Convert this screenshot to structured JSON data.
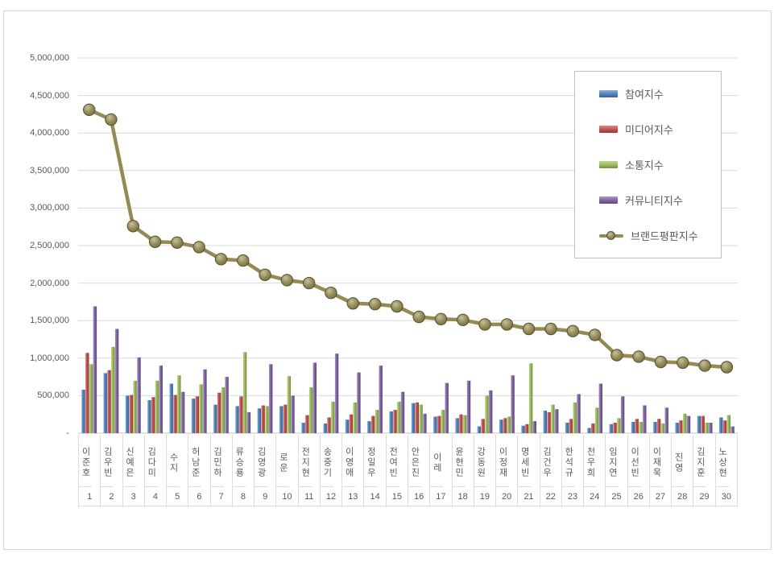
{
  "chart_data": {
    "type": "bar",
    "subtype": "grouped-bars-with-line-overlay",
    "title": "",
    "xlabel": "",
    "ylabel": "",
    "ylim": [
      0,
      5000000
    ],
    "y_tick_step": 500000,
    "y_tick_labels": [
      "-",
      "500,000",
      "1,000,000",
      "1,500,000",
      "2,000,000",
      "2,500,000",
      "3,000,000",
      "3,500,000",
      "4,000,000",
      "4,500,000",
      "5,000,000"
    ],
    "grid": true,
    "grid_color": "#D9D9D9",
    "axis_label_color": "#595959",
    "legend_position": "inside-top-right",
    "categories": [
      "이준호",
      "김우빈",
      "신예은",
      "김다미",
      "수지",
      "허남준",
      "김민하",
      "류승룡",
      "김영광",
      "로운",
      "전지현",
      "송중기",
      "이영애",
      "정일우",
      "전여빈",
      "안은진",
      "이레",
      "윤현민",
      "강동원",
      "이정재",
      "명세빈",
      "김건우",
      "한석규",
      "천우희",
      "임지연",
      "이선빈",
      "이재욱",
      "진영",
      "김지훈",
      "노상현"
    ],
    "ranks": [
      "1",
      "2",
      "3",
      "4",
      "5",
      "6",
      "7",
      "8",
      "9",
      "10",
      "11",
      "12",
      "13",
      "14",
      "15",
      "16",
      "17",
      "18",
      "19",
      "20",
      "21",
      "22",
      "23",
      "24",
      "25",
      "26",
      "27",
      "28",
      "29",
      "30"
    ],
    "series": [
      {
        "name": "참여지수",
        "type": "bar",
        "color": "#4F81BD",
        "values": [
          580000,
          800000,
          500000,
          440000,
          660000,
          460000,
          380000,
          360000,
          330000,
          360000,
          140000,
          130000,
          180000,
          160000,
          290000,
          400000,
          220000,
          200000,
          90000,
          180000,
          100000,
          300000,
          140000,
          70000,
          120000,
          150000,
          150000,
          140000,
          230000,
          210000
        ]
      },
      {
        "name": "미디어지수",
        "type": "bar",
        "color": "#C0504D",
        "values": [
          1070000,
          840000,
          510000,
          480000,
          510000,
          490000,
          540000,
          490000,
          370000,
          380000,
          240000,
          210000,
          250000,
          230000,
          310000,
          410000,
          230000,
          250000,
          190000,
          200000,
          120000,
          280000,
          190000,
          130000,
          140000,
          190000,
          190000,
          170000,
          230000,
          170000
        ]
      },
      {
        "name": "소통지수",
        "type": "bar",
        "color": "#9BBB59",
        "values": [
          920000,
          1150000,
          700000,
          700000,
          770000,
          650000,
          610000,
          1080000,
          360000,
          760000,
          610000,
          420000,
          410000,
          310000,
          420000,
          380000,
          310000,
          240000,
          500000,
          220000,
          930000,
          380000,
          410000,
          340000,
          200000,
          150000,
          130000,
          260000,
          140000,
          240000
        ]
      },
      {
        "name": "커뮤니티지수",
        "type": "bar",
        "color": "#8064A2",
        "values": [
          1690000,
          1390000,
          1010000,
          900000,
          550000,
          850000,
          750000,
          280000,
          920000,
          500000,
          940000,
          1060000,
          810000,
          900000,
          550000,
          260000,
          670000,
          700000,
          570000,
          770000,
          160000,
          320000,
          520000,
          660000,
          490000,
          370000,
          340000,
          230000,
          140000,
          90000
        ]
      },
      {
        "name": "브랜드평판지수",
        "type": "line",
        "color": "#948A54",
        "values": [
          4310000,
          4180000,
          2760000,
          2550000,
          2540000,
          2480000,
          2320000,
          2300000,
          2110000,
          2040000,
          2000000,
          1870000,
          1730000,
          1720000,
          1690000,
          1550000,
          1520000,
          1510000,
          1450000,
          1450000,
          1390000,
          1390000,
          1360000,
          1310000,
          1040000,
          1020000,
          950000,
          940000,
          900000,
          880000
        ]
      }
    ]
  }
}
